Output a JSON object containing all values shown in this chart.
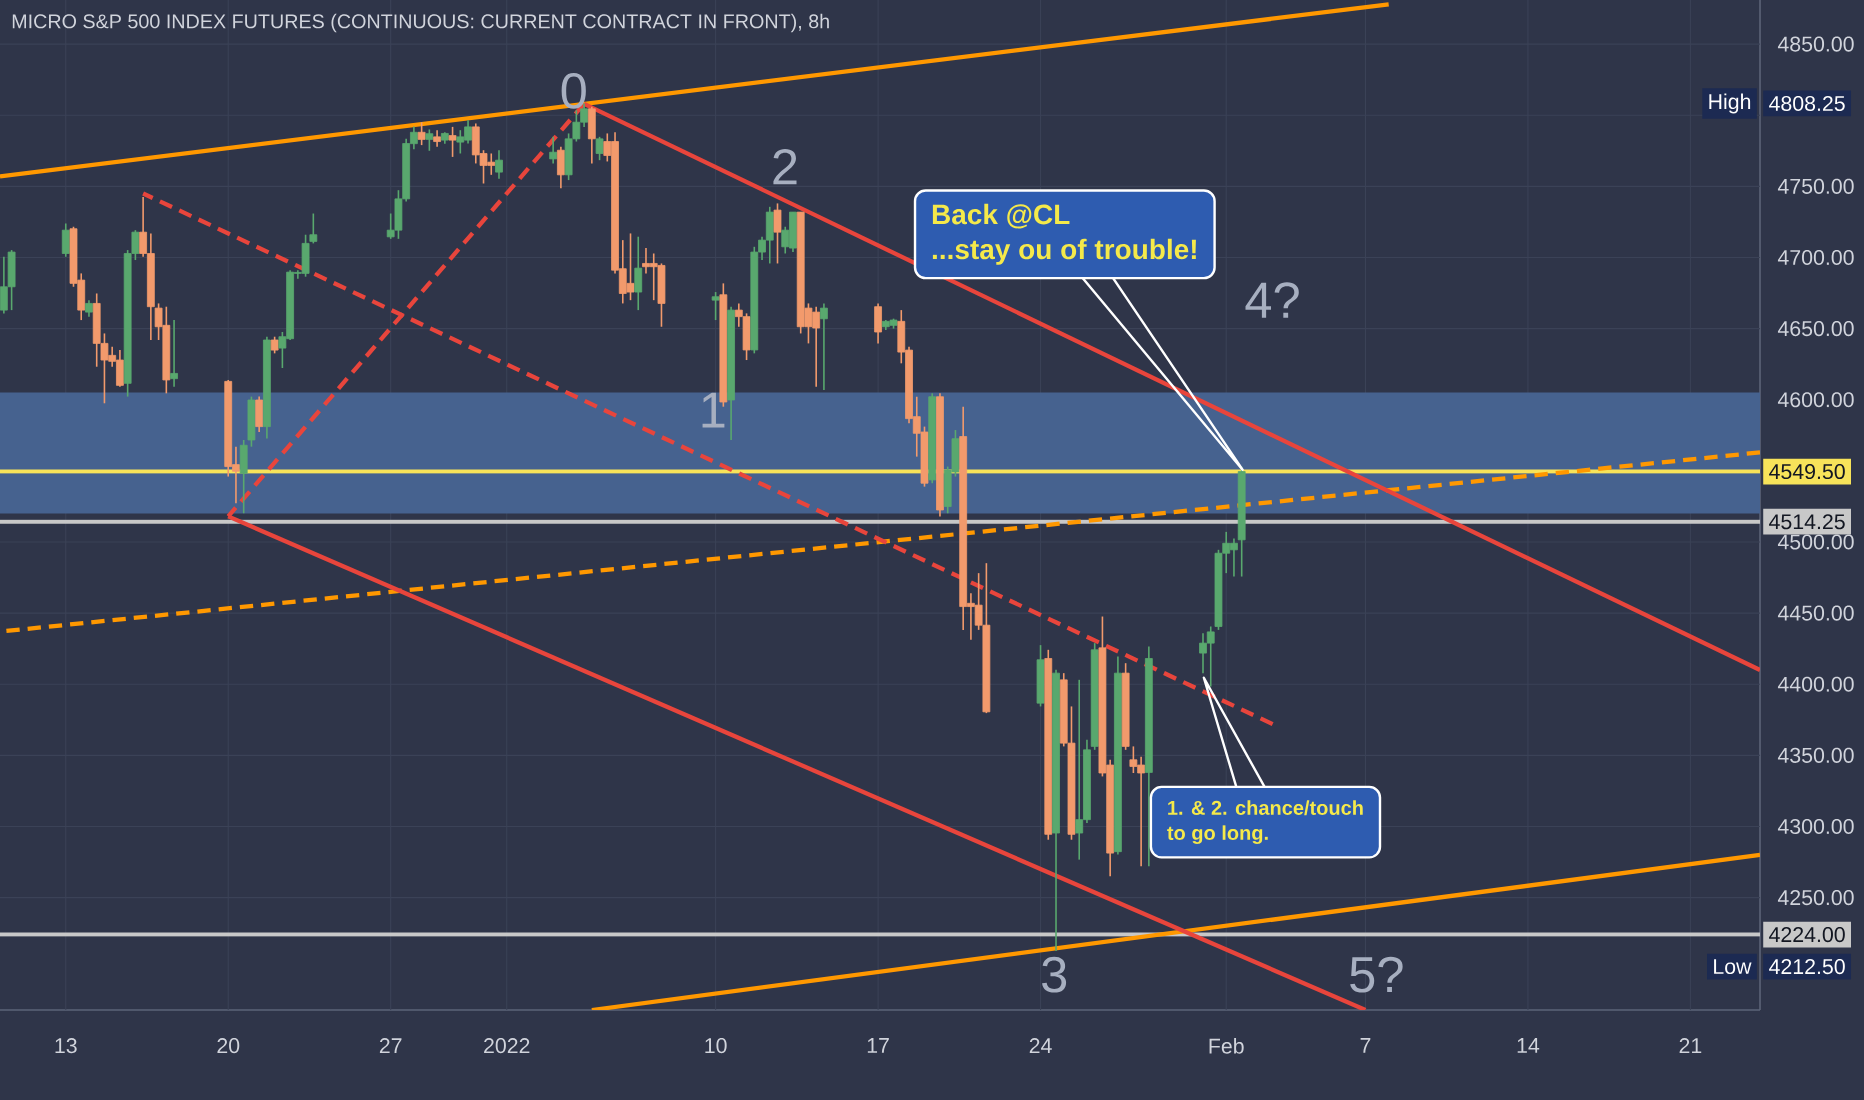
{
  "chart_data": {
    "type": "candlestick",
    "title": "MICRO S&P 500 INDEX FUTURES (CONTINUOUS: CURRENT CONTRACT IN FRONT), 8h",
    "x": [
      "2021-12-10T08:00",
      "2021-12-10T16:00",
      "2021-12-13T00:00",
      "2021-12-13T08:00",
      "2021-12-13T16:00",
      "2021-12-14T00:00",
      "2021-12-14T08:00",
      "2021-12-14T16:00",
      "2021-12-15T00:00",
      "2021-12-15T08:00",
      "2021-12-15T16:00",
      "2021-12-16T00:00",
      "2021-12-16T08:00",
      "2021-12-16T16:00",
      "2021-12-17T00:00",
      "2021-12-17T08:00",
      "2021-12-17T16:00",
      "2021-12-20T00:00",
      "2021-12-20T08:00",
      "2021-12-20T16:00",
      "2021-12-21T00:00",
      "2021-12-21T08:00",
      "2021-12-21T16:00",
      "2021-12-22T00:00",
      "2021-12-22T08:00",
      "2021-12-22T16:00",
      "2021-12-23T00:00",
      "2021-12-23T08:00",
      "2021-12-23T16:00",
      "2021-12-27T00:00",
      "2021-12-27T08:00",
      "2021-12-27T16:00",
      "2021-12-28T00:00",
      "2021-12-28T08:00",
      "2021-12-28T16:00",
      "2021-12-29T00:00",
      "2021-12-29T08:00",
      "2021-12-29T16:00",
      "2021-12-30T00:00",
      "2021-12-30T08:00",
      "2021-12-30T16:00",
      "2021-12-31T00:00",
      "2021-12-31T08:00",
      "2021-12-31T16:00",
      "2022-01-03T00:00",
      "2022-01-03T08:00",
      "2022-01-03T16:00",
      "2022-01-04T00:00",
      "2022-01-04T08:00",
      "2022-01-04T16:00",
      "2022-01-05T00:00",
      "2022-01-05T08:00",
      "2022-01-05T16:00",
      "2022-01-06T00:00",
      "2022-01-06T08:00",
      "2022-01-06T16:00",
      "2022-01-07T00:00",
      "2022-01-07T08:00",
      "2022-01-07T16:00",
      "2022-01-10T00:00",
      "2022-01-10T08:00",
      "2022-01-10T16:00",
      "2022-01-11T00:00",
      "2022-01-11T08:00",
      "2022-01-11T16:00",
      "2022-01-12T00:00",
      "2022-01-12T08:00",
      "2022-01-12T16:00",
      "2022-01-13T00:00",
      "2022-01-13T08:00",
      "2022-01-13T16:00",
      "2022-01-14T00:00",
      "2022-01-14T08:00",
      "2022-01-14T16:00",
      "2022-01-17T00:00",
      "2022-01-17T08:00",
      "2022-01-17T16:00",
      "2022-01-18T00:00",
      "2022-01-18T08:00",
      "2022-01-18T16:00",
      "2022-01-19T00:00",
      "2022-01-19T08:00",
      "2022-01-19T16:00",
      "2022-01-20T00:00",
      "2022-01-20T08:00",
      "2022-01-20T16:00",
      "2022-01-21T00:00",
      "2022-01-21T08:00",
      "2022-01-21T16:00",
      "2022-01-24T00:00",
      "2022-01-24T08:00",
      "2022-01-24T16:00",
      "2022-01-25T00:00",
      "2022-01-25T08:00",
      "2022-01-25T16:00",
      "2022-01-26T00:00",
      "2022-01-26T08:00",
      "2022-01-26T16:00",
      "2022-01-27T00:00",
      "2022-01-27T08:00",
      "2022-01-27T16:00",
      "2022-01-28T00:00",
      "2022-01-28T08:00",
      "2022-01-28T16:00",
      "2022-01-31T00:00",
      "2022-01-31T08:00",
      "2022-01-31T16:00",
      "2022-02-01T00:00",
      "2022-02-01T08:00",
      "2022-02-01T16:00"
    ],
    "ohlc": [
      [
        4663,
        4700.5,
        4660.7,
        4679.4
      ],
      [
        4679.4,
        4705.2,
        4663,
        4703.8
      ],
      [
        4702.8,
        4723.9,
        4700.5,
        4719.2
      ],
      [
        4720.2,
        4721.6,
        4679.4,
        4681.8
      ],
      [
        4684.1,
        4688.8,
        4656,
        4663
      ],
      [
        4661.6,
        4670,
        4658.4,
        4667.7
      ],
      [
        4667.7,
        4674.7,
        4623.2,
        4639.6
      ],
      [
        4639.6,
        4646.6,
        4597.5,
        4627.9
      ],
      [
        4631.2,
        4637.3,
        4623.2,
        4627
      ],
      [
        4627.9,
        4634.9,
        4609.2,
        4610.1
      ],
      [
        4611.5,
        4705.2,
        4602.2,
        4702.8
      ],
      [
        4702.8,
        4719.2,
        4698.2,
        4717.8
      ],
      [
        4717.8,
        4742.6,
        4700.5,
        4702.8
      ],
      [
        4702.8,
        4716.9,
        4642,
        4665.4
      ],
      [
        4664.4,
        4667.7,
        4642,
        4651.3
      ],
      [
        4652.3,
        4665.4,
        4604.5,
        4613.9
      ],
      [
        4614.8,
        4656,
        4609.2,
        4618.5
      ],
      [
        4612.9,
        4613.9,
        4546,
        4553
      ],
      [
        4554.4,
        4567,
        4527.2,
        4549.7
      ],
      [
        4548.3,
        4571.7,
        4520.2,
        4568
      ],
      [
        4571.7,
        4602.2,
        4567,
        4599.8
      ],
      [
        4599.8,
        4602.2,
        4577.3,
        4581.1
      ],
      [
        4581.1,
        4644.3,
        4572.7,
        4642
      ],
      [
        4642,
        4644.3,
        4632.6,
        4634.9
      ],
      [
        4636.3,
        4647.6,
        4622.3,
        4644.3
      ],
      [
        4642.9,
        4691.1,
        4642,
        4689.7
      ],
      [
        4688.8,
        4691.1,
        4685.1,
        4689.5
      ],
      [
        4688.8,
        4716,
        4686.5,
        4709.9
      ],
      [
        4711.3,
        4730.9,
        4709.9,
        4716
      ],
      [
        4714.5,
        4730.9,
        4713.1,
        4719.2
      ],
      [
        4719.2,
        4747.3,
        4713.1,
        4741.2
      ],
      [
        4741.2,
        4783.4,
        4739.4,
        4780.1
      ],
      [
        4780,
        4792,
        4776,
        4788
      ],
      [
        4788,
        4795,
        4779,
        4783
      ],
      [
        4783,
        4790,
        4775,
        4787
      ],
      [
        4784.8,
        4789.5,
        4777.8,
        4781.5
      ],
      [
        4782.5,
        4788,
        4780,
        4787.2
      ],
      [
        4785.7,
        4791.8,
        4770.7,
        4782.5
      ],
      [
        4781.1,
        4789.5,
        4773.1,
        4784.8
      ],
      [
        4782.5,
        4796.5,
        4780.1,
        4791.8
      ],
      [
        4791.8,
        4794.2,
        4766.1,
        4772.1
      ],
      [
        4773.1,
        4775.4,
        4752,
        4764.7
      ],
      [
        4767,
        4773.1,
        4758.1,
        4764.7
      ],
      [
        4760,
        4775.4,
        4755.3,
        4768.4
      ],
      [
        4769.3,
        4784.8,
        4766.1,
        4774
      ],
      [
        4775.4,
        4777.8,
        4748.7,
        4758.1
      ],
      [
        4758.1,
        4787.2,
        4754.4,
        4783.4
      ],
      [
        4783.4,
        4803.5,
        4781.5,
        4795.1
      ],
      [
        4795.1,
        4808.25,
        4791.8,
        4804.5
      ],
      [
        4804.5,
        4805.9,
        4766.1,
        4783.4
      ],
      [
        4773.1,
        4784.8,
        4768.4,
        4783.4
      ],
      [
        4781.5,
        4787.2,
        4767.5,
        4771.7
      ],
      [
        4781.5,
        4788.1,
        4688.8,
        4691.1
      ],
      [
        4692.1,
        4712.2,
        4667.7,
        4674.7
      ],
      [
        4681.8,
        4716.9,
        4670,
        4675.7
      ],
      [
        4675.7,
        4714.6,
        4663,
        4692.5
      ],
      [
        4695.8,
        4706.6,
        4688.8,
        4693.5
      ],
      [
        4695.8,
        4702.8,
        4670,
        4693.5
      ],
      [
        4694.4,
        4695.8,
        4651.3,
        4667.7
      ],
      [
        4670,
        4675.7,
        4656,
        4672.4
      ],
      [
        4673.8,
        4681.8,
        4595.1,
        4598.4
      ],
      [
        4599.8,
        4665.4,
        4571.7,
        4663
      ],
      [
        4663,
        4667.7,
        4651.3,
        4658.4
      ],
      [
        4658.4,
        4660.7,
        4627.9,
        4635
      ],
      [
        4635,
        4707.5,
        4632.6,
        4703.8
      ],
      [
        4703.8,
        4714.6,
        4698.2,
        4712.2
      ],
      [
        4712.2,
        4735.6,
        4695.8,
        4731.9
      ],
      [
        4733.3,
        4738,
        4695.8,
        4717.8
      ],
      [
        4707.5,
        4721.6,
        4702.8,
        4719.2
      ],
      [
        4706.6,
        4731.9,
        4703.8,
        4731.9
      ],
      [
        4731.9,
        4731.9,
        4646.6,
        4651.3
      ],
      [
        4664.4,
        4667.7,
        4639.6,
        4651.3
      ],
      [
        4661.6,
        4665.4,
        4609.2,
        4650.4
      ],
      [
        4656.9,
        4667.7,
        4606.8,
        4664.4
      ],
      [
        4665.4,
        4667.7,
        4639.6,
        4647.6
      ],
      [
        4651.3,
        4656,
        4649,
        4655.1
      ],
      [
        4652.3,
        4657,
        4650,
        4656
      ],
      [
        4655.1,
        4663,
        4625.6,
        4633.5
      ],
      [
        4634.9,
        4637.3,
        4583.4,
        4586.7
      ],
      [
        4588.1,
        4602.1,
        4560,
        4576.4
      ],
      [
        4577.3,
        4581.1,
        4538.9,
        4541.3
      ],
      [
        4543.6,
        4604.5,
        4541.3,
        4602.1
      ],
      [
        4602.1,
        4604.5,
        4517.9,
        4522.5
      ],
      [
        4524.9,
        4553,
        4520.2,
        4550.6
      ],
      [
        4549.2,
        4578.7,
        4546,
        4572.6
      ],
      [
        4574.1,
        4595.1,
        4438.2,
        4454.6
      ],
      [
        4456.9,
        4464,
        4431.2,
        4454.6
      ],
      [
        4455.6,
        4478.1,
        4438.2,
        4441.5
      ],
      [
        4441.5,
        4485.1,
        4379.7,
        4380.6
      ],
      [
        4386.7,
        4427.5,
        4384.4,
        4417.2
      ],
      [
        4418.1,
        4424.2,
        4290.7,
        4294.5
      ],
      [
        4295.4,
        4410.1,
        4212.5,
        4407.8
      ],
      [
        4403.1,
        4407.8,
        4356.3,
        4358.6
      ],
      [
        4358.6,
        4384.4,
        4290.7,
        4294.5
      ],
      [
        4295.4,
        4403.1,
        4276.7,
        4304.8
      ],
      [
        4304.8,
        4360.9,
        4302.4,
        4353.9
      ],
      [
        4356.3,
        4428.9,
        4353.9,
        4424.2
      ],
      [
        4425.6,
        4447.6,
        4335.2,
        4337.6
      ],
      [
        4343.2,
        4346.9,
        4265,
        4281.3
      ],
      [
        4282.3,
        4419.5,
        4280.4,
        4407.8
      ],
      [
        4407.8,
        4414.8,
        4353.9,
        4356.3
      ],
      [
        4346.9,
        4356.3,
        4337.6,
        4342.2
      ],
      [
        4343.2,
        4349,
        4272,
        4337.6
      ],
      [
        4338,
        4426.5,
        4272,
        4418.1
      ],
      [
        4421.9,
        4435.9,
        4407.8,
        4428.9
      ],
      [
        4428.9,
        4440.6,
        4398.4,
        4436.8
      ],
      [
        4440.6,
        4494.5,
        4438.2,
        4492.1
      ],
      [
        4492.1,
        4507.1,
        4478.1,
        4499.1
      ],
      [
        4494.5,
        4502.4,
        4475.7,
        4499.1
      ],
      [
        4501.5,
        4553,
        4475.7,
        4549.5
      ]
    ],
    "colors": [
      "#59a86e",
      "#59a86e",
      "#59a86e",
      "#f29a6c",
      "#f29a6c",
      "#59a86e",
      "#f29a6c",
      "#f29a6c",
      "#f29a6c",
      "#f29a6c",
      "#59a86e",
      "#59a86e",
      "#f29a6c",
      "#f29a6c",
      "#f29a6c",
      "#f29a6c",
      "#59a86e",
      "#f29a6c",
      "#f29a6c",
      "#59a86e",
      "#59a86e",
      "#f29a6c",
      "#59a86e",
      "#f29a6c",
      "#59a86e",
      "#59a86e",
      "#59a86e",
      "#59a86e",
      "#59a86e",
      "#59a86e",
      "#59a86e",
      "#59a86e",
      "#59a86e",
      "#f29a6c",
      "#59a86e",
      "#f29a6c",
      "#59a86e",
      "#f29a6c",
      "#59a86e",
      "#59a86e",
      "#f29a6c",
      "#f29a6c",
      "#f29a6c",
      "#59a86e",
      "#59a86e",
      "#f29a6c",
      "#59a86e",
      "#59a86e",
      "#59a86e",
      "#f29a6c",
      "#59a86e",
      "#f29a6c",
      "#f29a6c",
      "#f29a6c",
      "#f29a6c",
      "#59a86e",
      "#f29a6c",
      "#f29a6c",
      "#f29a6c",
      "#59a86e",
      "#f29a6c",
      "#59a86e",
      "#f29a6c",
      "#f29a6c",
      "#59a86e",
      "#59a86e",
      "#59a86e",
      "#f29a6c",
      "#59a86e",
      "#59a86e",
      "#f29a6c",
      "#f29a6c",
      "#f29a6c",
      "#59a86e",
      "#f29a6c",
      "#59a86e",
      "#59a86e",
      "#f29a6c",
      "#f29a6c",
      "#f29a6c",
      "#f29a6c",
      "#59a86e",
      "#f29a6c",
      "#59a86e",
      "#59a86e",
      "#f29a6c",
      "#f29a6c",
      "#f29a6c",
      "#f29a6c",
      "#59a86e",
      "#f29a6c",
      "#59a86e",
      "#f29a6c",
      "#f29a6c",
      "#59a86e",
      "#59a86e",
      "#59a86e",
      "#f29a6c",
      "#f29a6c",
      "#59a86e",
      "#f29a6c",
      "#f29a6c",
      "#f29a6c",
      "#59a86e",
      "#59a86e",
      "#59a86e",
      "#59a86e",
      "#59a86e",
      "#59a86e",
      "#59a86e"
    ],
    "series": [
      {
        "type": "line",
        "x": [
          "2021-12-10T04:00",
          "2022-02-08T00:00"
        ],
        "values": [
          4757,
          4878
        ],
        "color": "#ff9800",
        "line_style": "solid"
      },
      {
        "type": "line",
        "x": [
          "2022-01-04T16:00",
          "2022-02-24T00:00"
        ],
        "values": [
          4171,
          4280
        ],
        "color": "#ff9800",
        "line_style": "solid"
      },
      {
        "type": "line",
        "x": [
          "2021-12-10T04:00",
          "2022-02-24T00:00"
        ],
        "values": [
          4437,
          4563
        ],
        "color": "#ff9800",
        "line_style": "dashed"
      },
      {
        "type": "line",
        "x": [
          "2022-01-04T08:00",
          "2022-02-24T00:00"
        ],
        "values": [
          4808,
          4410
        ],
        "color": "#e8453c",
        "line_style": "solid"
      },
      {
        "type": "line",
        "x": [
          "2021-12-20T00:00",
          "2022-02-07T00:00"
        ],
        "values": [
          4518,
          4171
        ],
        "color": "#e8453c",
        "line_style": "solid"
      },
      {
        "type": "line",
        "x": [
          "2021-12-16T08:00",
          "2022-02-03T00:00"
        ],
        "values": [
          4745,
          4372
        ],
        "color": "#e8453c",
        "line_style": "dashed"
      },
      {
        "type": "line",
        "x": [
          "2021-12-20T00:00",
          "2022-01-04T08:00"
        ],
        "values": [
          4518,
          4808
        ],
        "color": "#e8453c",
        "line_style": "dashed"
      }
    ],
    "xlim": [
      "2021-12-10T04:00",
      "2022-02-24T00:00"
    ],
    "xticks": [
      {
        "value": "2021-12-13",
        "label": "13"
      },
      {
        "value": "2021-12-20",
        "label": "20"
      },
      {
        "value": "2021-12-27",
        "label": "27"
      },
      {
        "value": "2022-01-01",
        "label": "2022"
      },
      {
        "value": "2022-01-10",
        "label": "10"
      },
      {
        "value": "2022-01-17",
        "label": "17"
      },
      {
        "value": "2022-01-24",
        "label": "24"
      },
      {
        "value": "2022-02-01",
        "label": "Feb"
      },
      {
        "value": "2022-02-07",
        "label": "7"
      },
      {
        "value": "2022-02-14",
        "label": "14"
      },
      {
        "value": "2022-02-21",
        "label": "21"
      }
    ],
    "ylim": [
      4171,
      4881
    ],
    "yticks": [
      {
        "value": 4250,
        "label": "4250.00"
      },
      {
        "value": 4300,
        "label": "4300.00"
      },
      {
        "value": 4350,
        "label": "4350.00"
      },
      {
        "value": 4400,
        "label": "4400.00"
      },
      {
        "value": 4450,
        "label": "4450.00"
      },
      {
        "value": 4500,
        "label": "4500.00"
      },
      {
        "value": 4550,
        "label": null
      },
      {
        "value": 4600,
        "label": "4600.00"
      },
      {
        "value": 4650,
        "label": "4650.00"
      },
      {
        "value": 4700,
        "label": "4700.00"
      },
      {
        "value": 4750,
        "label": "4750.00"
      },
      {
        "value": 4800,
        "label": null
      },
      {
        "value": 4850,
        "label": "4850.00"
      }
    ],
    "grid": true,
    "bands": [
      {
        "axis": "y",
        "from": 4520,
        "to": 4605,
        "color": "#46628f"
      }
    ],
    "ref_lines": [
      {
        "axis": "y",
        "value": 4514.25,
        "label": "4514.25",
        "color": "#c8c8c8"
      },
      {
        "axis": "y",
        "value": 4224,
        "label": "4224.00",
        "color": "#c8c8c8"
      },
      {
        "axis": "y",
        "value": 4549.5,
        "label": "4549.50",
        "color": "#f7e35a"
      }
    ],
    "annotations": [
      "0",
      "1",
      "2",
      "3",
      "4?",
      "5?",
      "Back @CL",
      "...stay ou of trouble!",
      "1. & 2. chance/touch",
      "to go long.",
      "High",
      "4808.25",
      "Low",
      "4212.50"
    ]
  }
}
